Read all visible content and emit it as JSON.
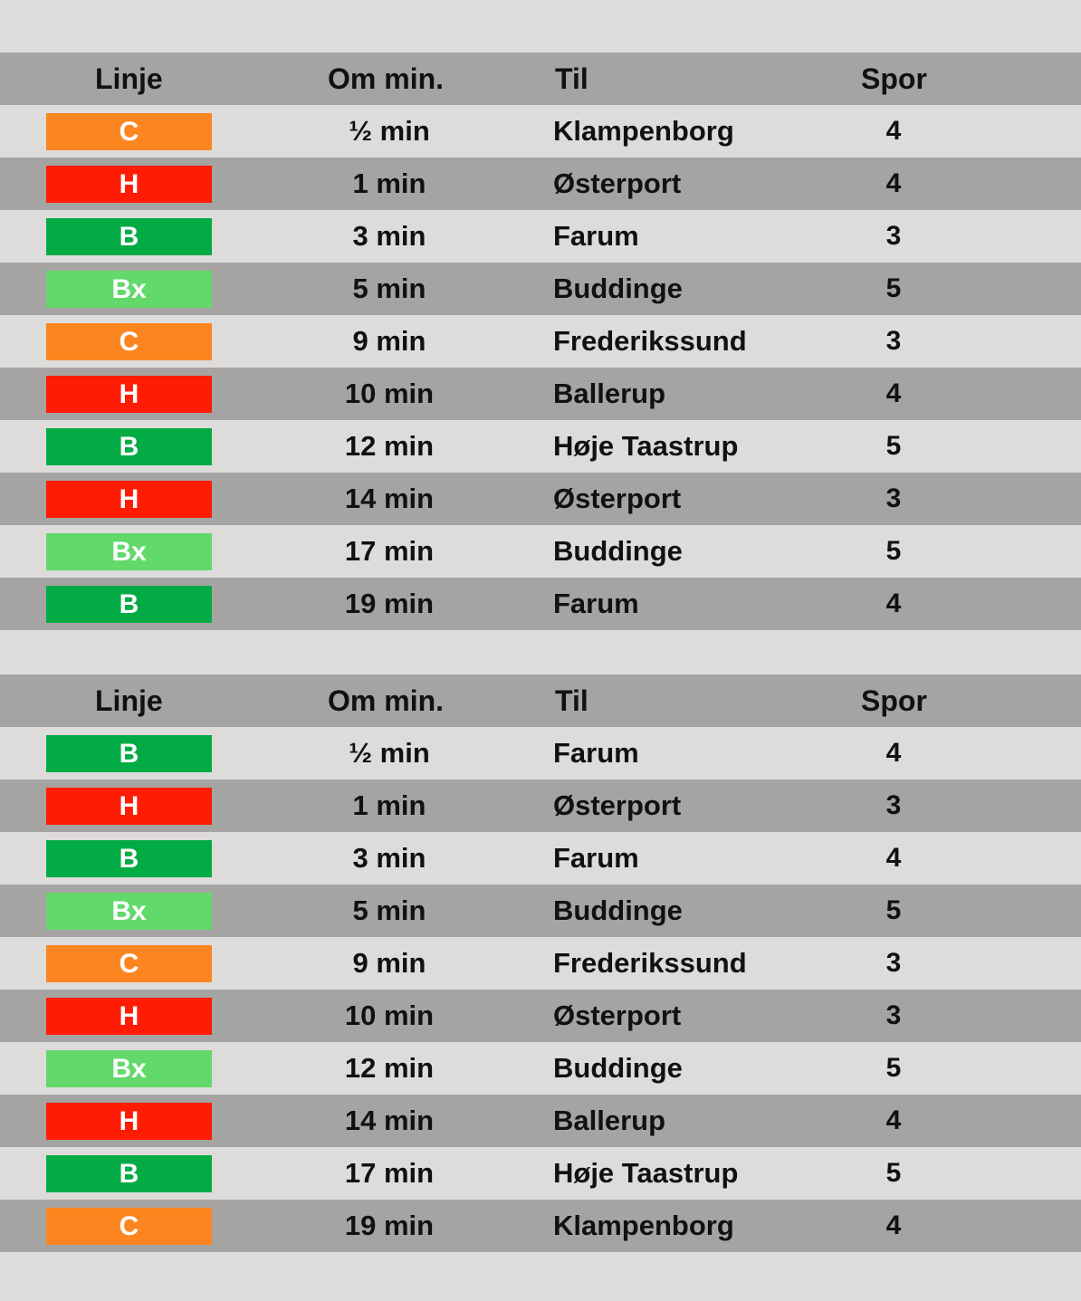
{
  "colors": {
    "C": "#fd8520",
    "H": "#fe1c05",
    "B": "#03ab44",
    "Bx": "#62d96a",
    "row_dark": "#a5a4a3",
    "row_light": "#dddcdb"
  },
  "boards": [
    {
      "header": {
        "line": "Linje",
        "minutes": "Om min.",
        "to": "Til",
        "track": "Spor"
      },
      "rows": [
        {
          "line": "C",
          "minutes": "½ min",
          "to": "Klampenborg",
          "track": "4"
        },
        {
          "line": "H",
          "minutes": "1 min",
          "to": "Østerport",
          "track": "4"
        },
        {
          "line": "B",
          "minutes": "3 min",
          "to": "Farum",
          "track": "3"
        },
        {
          "line": "Bx",
          "minutes": "5 min",
          "to": "Buddinge",
          "track": "5"
        },
        {
          "line": "C",
          "minutes": "9 min",
          "to": "Frederikssund",
          "track": "3"
        },
        {
          "line": "H",
          "minutes": "10 min",
          "to": "Ballerup",
          "track": "4"
        },
        {
          "line": "B",
          "minutes": "12 min",
          "to": "Høje Taastrup",
          "track": "5"
        },
        {
          "line": "H",
          "minutes": "14 min",
          "to": "Østerport",
          "track": "3"
        },
        {
          "line": "Bx",
          "minutes": "17 min",
          "to": "Buddinge",
          "track": "5"
        },
        {
          "line": "B",
          "minutes": "19 min",
          "to": "Farum",
          "track": "4"
        }
      ]
    },
    {
      "header": {
        "line": "Linje",
        "minutes": "Om min.",
        "to": "Til",
        "track": "Spor"
      },
      "rows": [
        {
          "line": "B",
          "minutes": "½ min",
          "to": "Farum",
          "track": "4"
        },
        {
          "line": "H",
          "minutes": "1 min",
          "to": "Østerport",
          "track": "3"
        },
        {
          "line": "B",
          "minutes": "3 min",
          "to": "Farum",
          "track": "4"
        },
        {
          "line": "Bx",
          "minutes": "5 min",
          "to": "Buddinge",
          "track": "5"
        },
        {
          "line": "C",
          "minutes": "9 min",
          "to": "Frederikssund",
          "track": "3"
        },
        {
          "line": "H",
          "minutes": "10 min",
          "to": "Østerport",
          "track": "3"
        },
        {
          "line": "Bx",
          "minutes": "12 min",
          "to": "Buddinge",
          "track": "5"
        },
        {
          "line": "H",
          "minutes": "14 min",
          "to": "Ballerup",
          "track": "4"
        },
        {
          "line": "B",
          "minutes": "17 min",
          "to": "Høje Taastrup",
          "track": "5"
        },
        {
          "line": "C",
          "minutes": "19 min",
          "to": "Klampenborg",
          "track": "4"
        }
      ]
    }
  ]
}
